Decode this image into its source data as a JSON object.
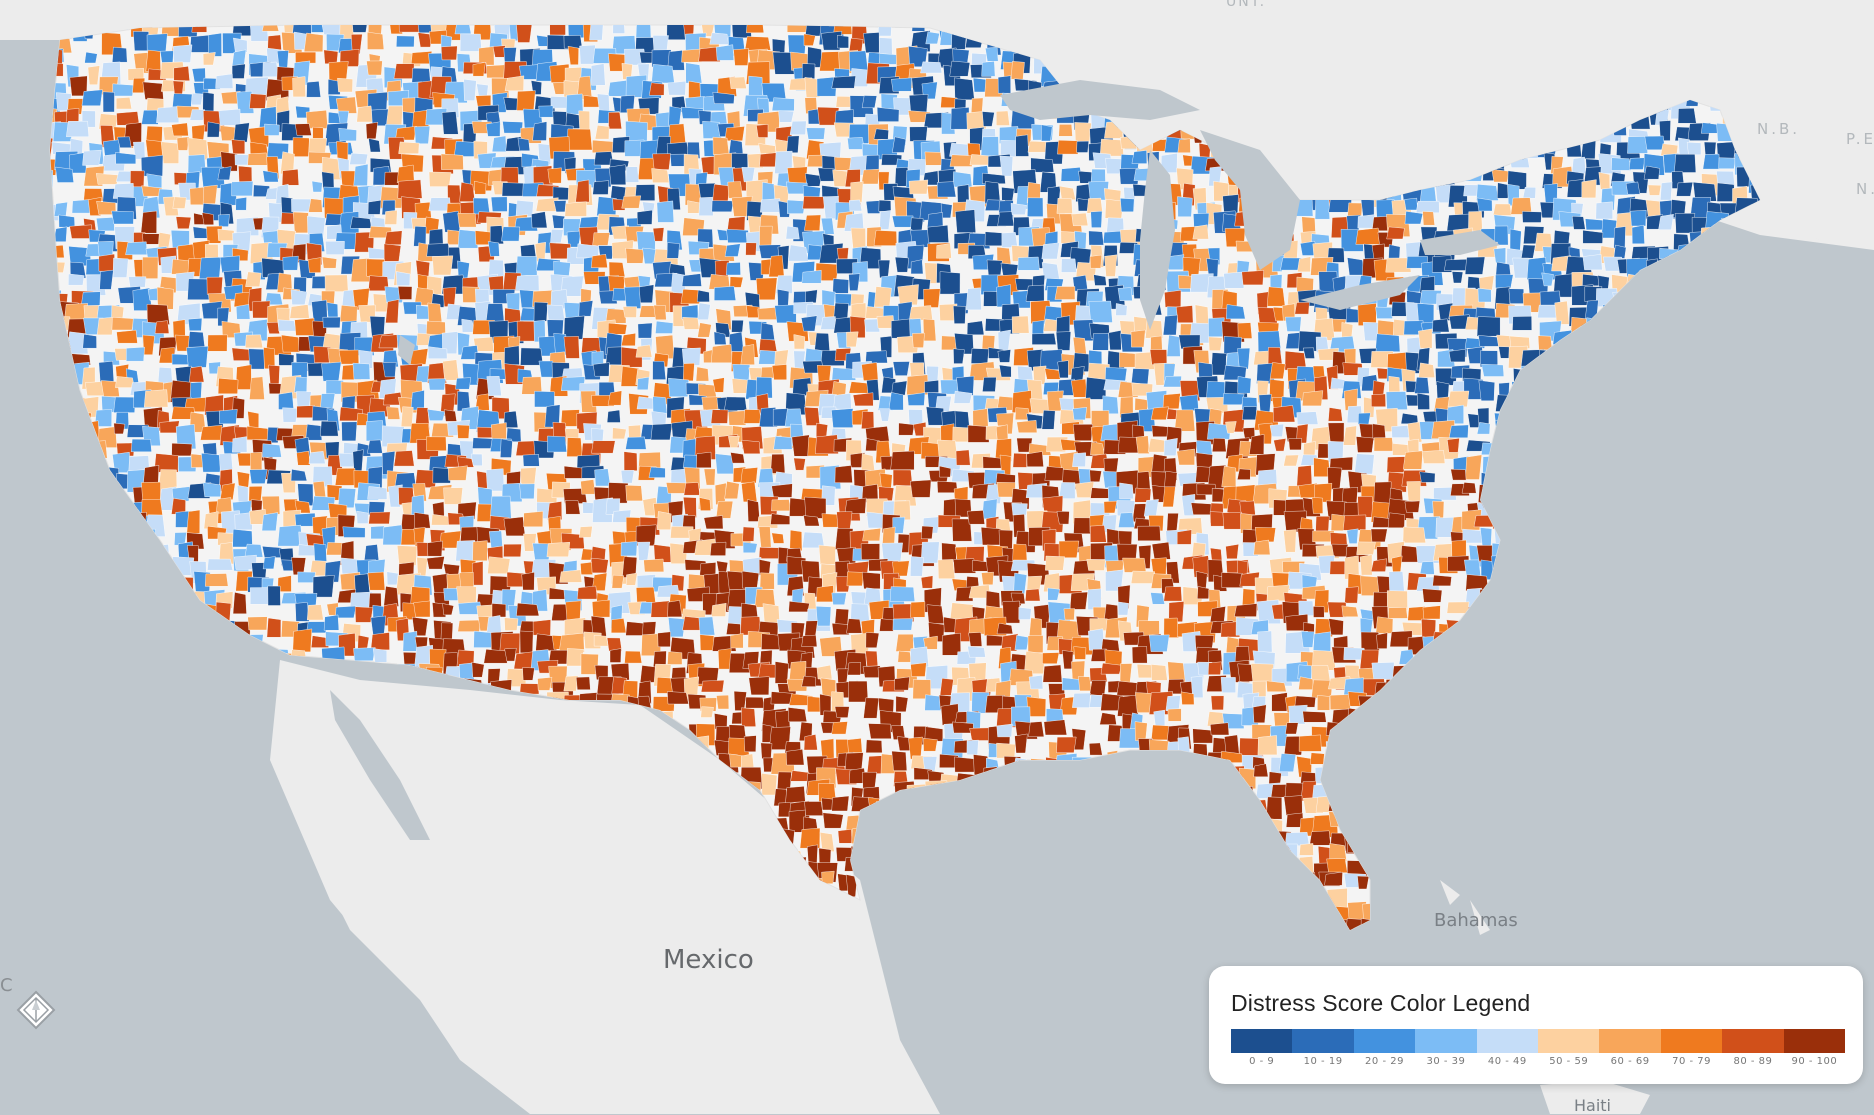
{
  "map": {
    "type": "choropleth",
    "region": "contiguous United States (census tracts)",
    "base_colors": {
      "water": "#bfc7cd",
      "land": "#ececec",
      "no_data_land": "#f4f4f4"
    },
    "labels": {
      "mexico": "Mexico",
      "bahamas": "Bahamas",
      "haiti": "Haiti",
      "canada_unt": "UNT.",
      "nb": "N.B.",
      "pe": "P.E.",
      "ns": "N."
    }
  },
  "legend": {
    "title": "Distress Score Color Legend",
    "items": [
      {
        "range": "0 - 9",
        "color": "#1c4f8f"
      },
      {
        "range": "10 - 19",
        "color": "#2b6cb8"
      },
      {
        "range": "20 - 29",
        "color": "#4392df"
      },
      {
        "range": "30 - 39",
        "color": "#7cbcf5"
      },
      {
        "range": "40 - 49",
        "color": "#c5ddf8"
      },
      {
        "range": "50 - 59",
        "color": "#fdd1a0"
      },
      {
        "range": "60 - 69",
        "color": "#f8a65a"
      },
      {
        "range": "70 - 79",
        "color": "#ef7a1f"
      },
      {
        "range": "80 - 89",
        "color": "#d1501a"
      },
      {
        "range": "90 - 100",
        "color": "#9a2f0a"
      }
    ]
  },
  "controls": {
    "compass_icon": "compass-icon",
    "compass_letter": "C"
  }
}
